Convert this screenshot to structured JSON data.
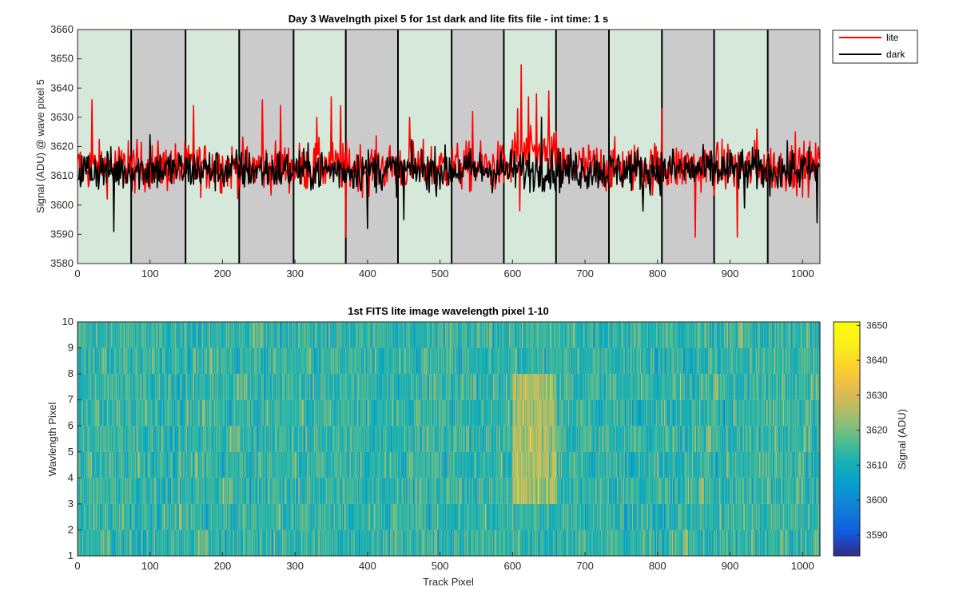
{
  "chart_data": [
    {
      "type": "line",
      "title": "Day 3 Wavelngth pixel 5 for 1st dark and lite fits file - int time: 1 s",
      "xlabel": "",
      "ylabel": "Signal (ADU) @ wave pixel 5",
      "xlim": [
        0,
        1024
      ],
      "ylim": [
        3580,
        3660
      ],
      "xticks": [
        0,
        100,
        200,
        300,
        400,
        500,
        600,
        700,
        800,
        900,
        1000
      ],
      "yticks": [
        3580,
        3590,
        3600,
        3610,
        3620,
        3630,
        3640,
        3650,
        3660
      ],
      "legend": {
        "placement": "outside-top-right",
        "entries": [
          "lite",
          "dark"
        ]
      },
      "background_bands": {
        "edges": [
          0,
          74,
          149,
          223,
          298,
          370,
          442,
          516,
          588,
          660,
          733,
          806,
          878,
          952,
          1024
        ],
        "colors": [
          "#d5e8d9",
          "#cbcbcb"
        ]
      },
      "series": [
        {
          "name": "lite",
          "color": "#ff0000",
          "baseline": 3613,
          "noise": 7,
          "spikes": [
            {
              "x": 20,
              "y": 3636
            },
            {
              "x": 70,
              "y": 3622
            },
            {
              "x": 160,
              "y": 3634
            },
            {
              "x": 255,
              "y": 3636
            },
            {
              "x": 280,
              "y": 3634
            },
            {
              "x": 330,
              "y": 3630
            },
            {
              "x": 350,
              "y": 3637
            },
            {
              "x": 363,
              "y": 3634
            },
            {
              "x": 370,
              "y": 3589
            },
            {
              "x": 458,
              "y": 3630
            },
            {
              "x": 545,
              "y": 3632
            },
            {
              "x": 607,
              "y": 3633
            },
            {
              "x": 612,
              "y": 3648
            },
            {
              "x": 622,
              "y": 3637
            },
            {
              "x": 633,
              "y": 3638
            },
            {
              "x": 650,
              "y": 3639
            },
            {
              "x": 610,
              "y": 3598
            },
            {
              "x": 806,
              "y": 3633
            },
            {
              "x": 852,
              "y": 3589
            },
            {
              "x": 910,
              "y": 3589
            },
            {
              "x": 937,
              "y": 3626
            },
            {
              "x": 990,
              "y": 3625
            }
          ]
        },
        {
          "name": "dark",
          "color": "#000000",
          "baseline": 3612,
          "noise": 6,
          "spikes": [
            {
              "x": 50,
              "y": 3591
            },
            {
              "x": 100,
              "y": 3624
            },
            {
              "x": 400,
              "y": 3592
            },
            {
              "x": 450,
              "y": 3595
            },
            {
              "x": 640,
              "y": 3630
            },
            {
              "x": 780,
              "y": 3598
            },
            {
              "x": 920,
              "y": 3599
            },
            {
              "x": 1020,
              "y": 3594
            }
          ]
        }
      ]
    },
    {
      "type": "heatmap",
      "title": "1st FITS lite image wavelength pixel 1-10",
      "xlabel": "Track Pixel",
      "ylabel": "Wavlength Pixel",
      "xlim": [
        0,
        1024
      ],
      "ylim": [
        1,
        10
      ],
      "xticks": [
        0,
        100,
        200,
        300,
        400,
        500,
        600,
        700,
        800,
        900,
        1000
      ],
      "yticks": [
        1,
        2,
        3,
        4,
        5,
        6,
        7,
        8,
        9,
        10
      ],
      "rows": 9,
      "columns": 1024,
      "colormap": "parula",
      "colorbar": {
        "label": "Signal (ADU)",
        "ticks": [
          3590,
          3600,
          3610,
          3620,
          3630,
          3640,
          3650
        ],
        "range": [
          3584,
          3651
        ]
      },
      "mean_signal": 3613,
      "bright_region": {
        "x_start": 600,
        "x_end": 660,
        "rows": [
          4,
          5,
          6,
          7,
          8
        ],
        "peak": 3634
      }
    }
  ]
}
